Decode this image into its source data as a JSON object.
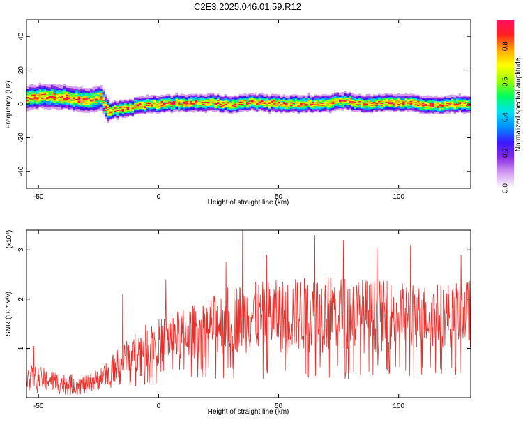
{
  "title": "C2E3.2025.046.01.59.R12",
  "chart_data": [
    {
      "type": "heatmap",
      "xlabel": "Height of straight line (km)",
      "ylabel": "Frequency (Hz)",
      "xlim": [
        -55,
        130
      ],
      "ylim": [
        -50,
        50
      ],
      "xticks": [
        -50,
        0,
        50,
        100
      ],
      "yticks": [
        -40,
        -20,
        0,
        20,
        40
      ],
      "ridge_center": [
        {
          "x": -55,
          "y": 3
        },
        {
          "x": -47,
          "y": 5
        },
        {
          "x": -40,
          "y": 4
        },
        {
          "x": -30,
          "y": 2
        },
        {
          "x": -24,
          "y": 4
        },
        {
          "x": -21,
          "y": -4
        },
        {
          "x": -15,
          "y": -3
        },
        {
          "x": -7,
          "y": -1
        },
        {
          "x": 0,
          "y": 0
        },
        {
          "x": 10,
          "y": 0.5
        },
        {
          "x": 20,
          "y": 1
        },
        {
          "x": 30,
          "y": 0
        },
        {
          "x": 40,
          "y": 1
        },
        {
          "x": 50,
          "y": 0
        },
        {
          "x": 60,
          "y": 0
        },
        {
          "x": 70,
          "y": 0.5
        },
        {
          "x": 78,
          "y": 2
        },
        {
          "x": 85,
          "y": 0
        },
        {
          "x": 95,
          "y": 1
        },
        {
          "x": 105,
          "y": 1
        },
        {
          "x": 113,
          "y": -1
        },
        {
          "x": 122,
          "y": 0
        },
        {
          "x": 130,
          "y": 0
        }
      ],
      "colorbar": {
        "label": "Normalized spectral amplitude",
        "range": [
          0.0,
          0.95
        ],
        "ticks": [
          0.0,
          0.2,
          0.4,
          0.6,
          0.8
        ],
        "tick_labels": [
          "0.0",
          "0.2",
          "0.4",
          "0.6",
          "0.8"
        ],
        "colors": [
          "#ffffff",
          "#d49df2",
          "#8a2be2",
          "#3a18ff",
          "#0090ff",
          "#00e0f0",
          "#00ff60",
          "#9aff00",
          "#ffff00",
          "#ffaa00",
          "#ff2020",
          "#ff1060"
        ]
      }
    },
    {
      "type": "line",
      "xlabel": "Height of straight line (km)",
      "ylabel": "SNR (10 * v/v)",
      "multiplier_label": "(x10",
      "multiplier_exp": "4",
      "xlim": [
        -55,
        130
      ],
      "ylim": [
        0,
        3.4
      ],
      "xticks": [
        -50,
        0,
        50,
        100
      ],
      "yticks": [
        1,
        2,
        3
      ],
      "color": "#e8312a",
      "envelope": [
        {
          "x": -55,
          "lo": 0.2,
          "hi": 0.7
        },
        {
          "x": -40,
          "lo": 0.05,
          "hi": 0.5
        },
        {
          "x": -30,
          "lo": 0.05,
          "hi": 0.45
        },
        {
          "x": -22,
          "lo": 0.2,
          "hi": 0.7
        },
        {
          "x": -15,
          "lo": 0.4,
          "hi": 1.1
        },
        {
          "x": -5,
          "lo": 0.6,
          "hi": 1.5
        },
        {
          "x": 5,
          "lo": 0.7,
          "hi": 1.7
        },
        {
          "x": 20,
          "lo": 0.8,
          "hi": 2.0
        },
        {
          "x": 30,
          "lo": 0.9,
          "hi": 2.3
        },
        {
          "x": 50,
          "lo": 0.9,
          "hi": 2.4
        },
        {
          "x": 70,
          "lo": 0.9,
          "hi": 2.5
        },
        {
          "x": 90,
          "lo": 0.9,
          "hi": 2.4
        },
        {
          "x": 110,
          "lo": 1.0,
          "hi": 2.3
        },
        {
          "x": 130,
          "lo": 1.0,
          "hi": 2.4
        }
      ],
      "peaks": [
        {
          "x": -52,
          "y": 1.05
        },
        {
          "x": -15,
          "y": 2.1
        },
        {
          "x": 3,
          "y": 2.4
        },
        {
          "x": 28,
          "y": 2.75
        },
        {
          "x": 35,
          "y": 3.4
        },
        {
          "x": 45,
          "y": 2.9
        },
        {
          "x": 65,
          "y": 3.3
        },
        {
          "x": 77,
          "y": 3.2
        },
        {
          "x": 91,
          "y": 3.05
        },
        {
          "x": 105,
          "y": 3.1
        },
        {
          "x": 126,
          "y": 2.9
        }
      ]
    }
  ]
}
